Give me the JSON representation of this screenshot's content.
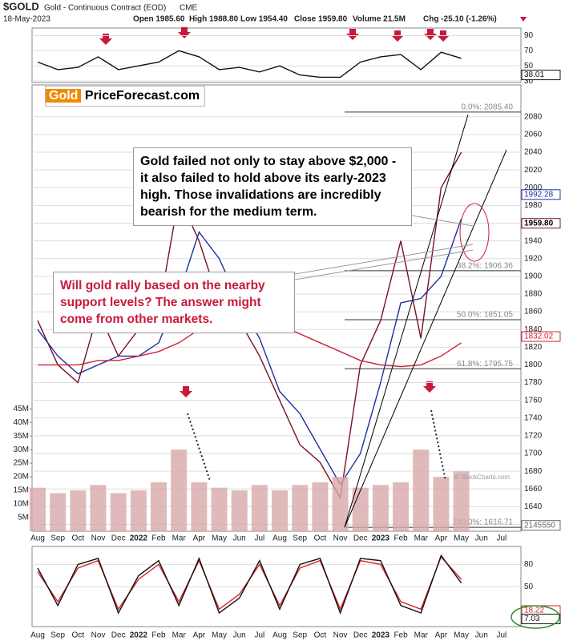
{
  "chart_data": [
    {
      "type": "line",
      "title": "$GOLD",
      "subtitle": "Gold - Continuous Contract (EOD)",
      "exchange": "CME",
      "date": "18-May-2023",
      "stats": [
        "Open 1985.60",
        "High 1988.80",
        "Low 1954.40",
        "Close 1959.80",
        "Volume 21.5M",
        "Chg -25.10 (-1.26%)"
      ],
      "categories": [
        "Aug",
        "Sep",
        "Oct",
        "Nov",
        "Dec",
        "2022",
        "Feb",
        "Mar",
        "Apr",
        "May",
        "Jun",
        "Jul",
        "Aug",
        "Sep",
        "Oct",
        "Nov",
        "Dec",
        "2023",
        "Feb",
        "Mar",
        "Apr",
        "May",
        "Jun",
        "Jul"
      ],
      "series": [
        {
          "color": "#7a1020",
          "values": [
            1850,
            1800,
            1780,
            1860,
            1810,
            1840,
            1860,
            1990,
            1940,
            1870,
            1850,
            1810,
            1760,
            1710,
            1690,
            1650,
            1800,
            1850,
            1940,
            1830,
            2000,
            2040,
            null,
            null
          ],
          "last_value": {
            "value": 1959.8,
            "label": "1959.80"
          }
        },
        {
          "color": "#1f2f9e",
          "values": [
            1840,
            1810,
            1790,
            1800,
            1810,
            1810,
            1825,
            1880,
            1950,
            1920,
            1870,
            1830,
            1770,
            1745,
            1705,
            1665,
            1700,
            1780,
            1870,
            1875,
            1900,
            1965,
            null,
            null
          ],
          "last_value": 1992.28
        },
        {
          "color": "#d0203a",
          "values": [
            1800,
            1800,
            1800,
            1805,
            1805,
            1810,
            1815,
            1825,
            1840,
            1850,
            1855,
            1850,
            1845,
            1835,
            1825,
            1815,
            1805,
            1800,
            1798,
            1800,
            1810,
            1825,
            null,
            null
          ],
          "last_value": 1832.02
        }
      ],
      "ylim": [
        1615,
        2116
      ],
      "yticks": [
        1620,
        1640,
        1660,
        1680,
        1700,
        1720,
        1740,
        1760,
        1780,
        1800,
        1820,
        1840,
        1860,
        1880,
        1900,
        1920,
        1940,
        1960,
        1980,
        2000,
        2020,
        2040,
        2060,
        2080
      ],
      "grid": true,
      "fib_levels": [
        {
          "value": 2085.4,
          "label": "0.0%: 2085.40"
        },
        {
          "value": 1906.36,
          "label": "38.2%: 1906.36"
        },
        {
          "value": 1851.05,
          "label": "50.0%: 1851.05"
        },
        {
          "value": 1795.75,
          "label": "61.8%: 1795.75"
        },
        {
          "value": 1616.71,
          "label": "100.0%: 1616.71"
        }
      ],
      "annotations": [
        "Gold failed not only to stay above $2,000 - it also failed to hold above its early-2023 high. Those invalidations are incredibly bearish for the medium term.",
        "Will gold rally based on the nearby support levels? The answer might come from other markets."
      ],
      "logo": [
        "Gold",
        "PriceForecast.com"
      ],
      "credit": "© StockCharts.com"
    },
    {
      "type": "bar",
      "color": "#d8a9a9",
      "values": [
        16000000,
        14000000,
        15000000,
        17000000,
        14000000,
        15000000,
        18000000,
        30000000,
        18000000,
        16000000,
        15000000,
        17000000,
        15000000,
        17000000,
        18000000,
        20000000,
        16000000,
        17000000,
        18000000,
        30000000,
        20000000,
        22000000,
        null,
        null
      ],
      "last_value": 2145550,
      "ylim": [
        0,
        48000000
      ],
      "yticks": [
        {
          "value": 5000000,
          "label": "5M"
        },
        {
          "value": 10000000,
          "label": "10M"
        },
        {
          "value": 15000000,
          "label": "15M"
        },
        {
          "value": 20000000,
          "label": "20M"
        },
        {
          "value": 25000000,
          "label": "25M"
        },
        {
          "value": 30000000,
          "label": "30M"
        },
        {
          "value": 35000000,
          "label": "35M"
        },
        {
          "value": 40000000,
          "label": "40M"
        },
        {
          "value": 45000000,
          "label": "45M"
        }
      ],
      "grid": false
    },
    {
      "type": "line",
      "series": [
        {
          "color": "#111111",
          "values": [
            55,
            45,
            48,
            62,
            45,
            50,
            55,
            70,
            62,
            45,
            48,
            42,
            50,
            38,
            35,
            35,
            55,
            62,
            65,
            45,
            68,
            60,
            null,
            null
          ],
          "last_value": 38.01
        }
      ],
      "ylim": [
        28,
        100
      ],
      "yticks": [
        30,
        50,
        70,
        90
      ],
      "grid": true
    },
    {
      "type": "line",
      "categories": [
        "Aug",
        "Sep",
        "Oct",
        "Nov",
        "Dec",
        "2022",
        "Feb",
        "Mar",
        "Apr",
        "May",
        "Jun",
        "Jul",
        "Aug",
        "Sep",
        "Oct",
        "Nov",
        "Dec",
        "2023",
        "Feb",
        "Mar",
        "Apr",
        "May",
        "Jun",
        "Jul"
      ],
      "series": [
        {
          "color": "#d62728",
          "values": [
            70,
            30,
            75,
            85,
            20,
            60,
            80,
            30,
            85,
            20,
            40,
            80,
            25,
            75,
            85,
            20,
            85,
            80,
            30,
            20,
            90,
            60,
            null,
            null
          ],
          "last_value": 18.22
        },
        {
          "color": "#111111",
          "values": [
            75,
            25,
            80,
            88,
            15,
            65,
            85,
            25,
            88,
            15,
            35,
            85,
            20,
            80,
            88,
            15,
            88,
            85,
            25,
            15,
            92,
            55,
            null,
            null
          ],
          "last_value": 7.03
        }
      ],
      "ylim": [
        0,
        104
      ],
      "yticks": [
        50,
        80
      ],
      "grid": true
    }
  ]
}
